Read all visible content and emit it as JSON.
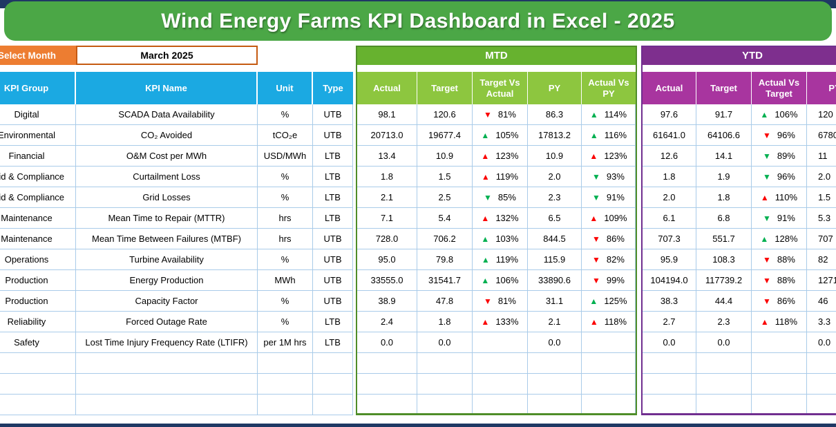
{
  "title": "Wind Energy Farms KPI Dashboard in Excel - 2025",
  "controls": {
    "select_month_label": "Select Month",
    "selected_month": "March 2025"
  },
  "sections": {
    "mtd_label": "MTD",
    "ytd_label": "YTD"
  },
  "headers": {
    "kpi_group": "KPI Group",
    "kpi_name": "KPI Name",
    "unit": "Unit",
    "type": "Type",
    "actual": "Actual",
    "target": "Target",
    "target_vs_actual": "Target Vs Actual",
    "py": "PY",
    "actual_vs_py": "Actual Vs PY",
    "actual_vs_target": "Actual Vs Target"
  },
  "colors": {
    "navy_accent": "#1F3864",
    "banner_green": "#4BA746",
    "mtd_band_green": "#67B22F",
    "mtd_header_green": "#8DC63F",
    "ytd_band_purple": "#7E2F8E",
    "ytd_header_purple": "#A8359F",
    "table_header_cyan": "#1BA9E2",
    "select_month_orange": "#ED7D31",
    "grid_line_blue": "#A9CBE9",
    "trend_up_good_green": "#00B050",
    "trend_bad_red": "#FB0000"
  },
  "icons": {
    "trend_up": "▲",
    "trend_down": "▼"
  },
  "empty_row_count": 3,
  "rows": [
    {
      "group": "Digital",
      "name": "SCADA Data Availability",
      "unit": "%",
      "type": "UTB",
      "mtd": {
        "actual": "98.1",
        "target": "120.6",
        "target_vs_actual": {
          "trend": "down",
          "color": "red",
          "value": "81%"
        },
        "py": "86.3",
        "actual_vs_py": {
          "trend": "up",
          "color": "green",
          "value": "114%"
        }
      },
      "ytd": {
        "actual": "97.6",
        "target": "91.7",
        "actual_vs_target": {
          "trend": "up",
          "color": "green",
          "value": "106%"
        },
        "py": "120"
      }
    },
    {
      "group": "Environmental",
      "name": "CO₂ Avoided",
      "unit": "tCO₂e",
      "type": "UTB",
      "mtd": {
        "actual": "20713.0",
        "target": "19677.4",
        "target_vs_actual": {
          "trend": "up",
          "color": "green",
          "value": "105%"
        },
        "py": "17813.2",
        "actual_vs_py": {
          "trend": "up",
          "color": "green",
          "value": "116%"
        }
      },
      "ytd": {
        "actual": "61641.0",
        "target": "64106.6",
        "actual_vs_target": {
          "trend": "down",
          "color": "red",
          "value": "96%"
        },
        "py": "6780"
      }
    },
    {
      "group": "Financial",
      "name": "O&M Cost per MWh",
      "unit": "USD/MWh",
      "type": "LTB",
      "mtd": {
        "actual": "13.4",
        "target": "10.9",
        "target_vs_actual": {
          "trend": "up",
          "color": "red",
          "value": "123%"
        },
        "py": "10.9",
        "actual_vs_py": {
          "trend": "up",
          "color": "red",
          "value": "123%"
        }
      },
      "ytd": {
        "actual": "12.6",
        "target": "14.1",
        "actual_vs_target": {
          "trend": "down",
          "color": "green",
          "value": "89%"
        },
        "py": "11"
      }
    },
    {
      "group": "Grid & Compliance",
      "name": "Curtailment Loss",
      "unit": "%",
      "type": "LTB",
      "mtd": {
        "actual": "1.8",
        "target": "1.5",
        "target_vs_actual": {
          "trend": "up",
          "color": "red",
          "value": "119%"
        },
        "py": "2.0",
        "actual_vs_py": {
          "trend": "down",
          "color": "green",
          "value": "93%"
        }
      },
      "ytd": {
        "actual": "1.8",
        "target": "1.9",
        "actual_vs_target": {
          "trend": "down",
          "color": "green",
          "value": "96%"
        },
        "py": "2.0"
      }
    },
    {
      "group": "Grid & Compliance",
      "name": "Grid Losses",
      "unit": "%",
      "type": "LTB",
      "mtd": {
        "actual": "2.1",
        "target": "2.5",
        "target_vs_actual": {
          "trend": "down",
          "color": "green",
          "value": "85%"
        },
        "py": "2.3",
        "actual_vs_py": {
          "trend": "down",
          "color": "green",
          "value": "91%"
        }
      },
      "ytd": {
        "actual": "2.0",
        "target": "1.8",
        "actual_vs_target": {
          "trend": "up",
          "color": "red",
          "value": "110%"
        },
        "py": "1.5"
      }
    },
    {
      "group": "Maintenance",
      "name": "Mean Time to Repair (MTTR)",
      "unit": "hrs",
      "type": "LTB",
      "mtd": {
        "actual": "7.1",
        "target": "5.4",
        "target_vs_actual": {
          "trend": "up",
          "color": "red",
          "value": "132%"
        },
        "py": "6.5",
        "actual_vs_py": {
          "trend": "up",
          "color": "red",
          "value": "109%"
        }
      },
      "ytd": {
        "actual": "6.1",
        "target": "6.8",
        "actual_vs_target": {
          "trend": "down",
          "color": "green",
          "value": "91%"
        },
        "py": "5.3"
      }
    },
    {
      "group": "Maintenance",
      "name": "Mean Time Between Failures (MTBF)",
      "unit": "hrs",
      "type": "UTB",
      "mtd": {
        "actual": "728.0",
        "target": "706.2",
        "target_vs_actual": {
          "trend": "up",
          "color": "green",
          "value": "103%"
        },
        "py": "844.5",
        "actual_vs_py": {
          "trend": "down",
          "color": "red",
          "value": "86%"
        }
      },
      "ytd": {
        "actual": "707.3",
        "target": "551.7",
        "actual_vs_target": {
          "trend": "up",
          "color": "green",
          "value": "128%"
        },
        "py": "707"
      }
    },
    {
      "group": "Operations",
      "name": "Turbine Availability",
      "unit": "%",
      "type": "UTB",
      "mtd": {
        "actual": "95.0",
        "target": "79.8",
        "target_vs_actual": {
          "trend": "up",
          "color": "green",
          "value": "119%"
        },
        "py": "115.9",
        "actual_vs_py": {
          "trend": "down",
          "color": "red",
          "value": "82%"
        }
      },
      "ytd": {
        "actual": "95.9",
        "target": "108.3",
        "actual_vs_target": {
          "trend": "down",
          "color": "red",
          "value": "88%"
        },
        "py": "82"
      }
    },
    {
      "group": "Production",
      "name": "Energy Production",
      "unit": "MWh",
      "type": "UTB",
      "mtd": {
        "actual": "33555.0",
        "target": "31541.7",
        "target_vs_actual": {
          "trend": "up",
          "color": "green",
          "value": "106%"
        },
        "py": "33890.6",
        "actual_vs_py": {
          "trend": "down",
          "color": "red",
          "value": "99%"
        }
      },
      "ytd": {
        "actual": "104194.0",
        "target": "117739.2",
        "actual_vs_target": {
          "trend": "down",
          "color": "red",
          "value": "88%"
        },
        "py": "1271"
      }
    },
    {
      "group": "Production",
      "name": "Capacity Factor",
      "unit": "%",
      "type": "UTB",
      "mtd": {
        "actual": "38.9",
        "target": "47.8",
        "target_vs_actual": {
          "trend": "down",
          "color": "red",
          "value": "81%"
        },
        "py": "31.1",
        "actual_vs_py": {
          "trend": "up",
          "color": "green",
          "value": "125%"
        }
      },
      "ytd": {
        "actual": "38.3",
        "target": "44.4",
        "actual_vs_target": {
          "trend": "down",
          "color": "red",
          "value": "86%"
        },
        "py": "46"
      }
    },
    {
      "group": "Reliability",
      "name": "Forced Outage Rate",
      "unit": "%",
      "type": "LTB",
      "mtd": {
        "actual": "2.4",
        "target": "1.8",
        "target_vs_actual": {
          "trend": "up",
          "color": "red",
          "value": "133%"
        },
        "py": "2.1",
        "actual_vs_py": {
          "trend": "up",
          "color": "red",
          "value": "118%"
        }
      },
      "ytd": {
        "actual": "2.7",
        "target": "2.3",
        "actual_vs_target": {
          "trend": "up",
          "color": "red",
          "value": "118%"
        },
        "py": "3.3"
      }
    },
    {
      "group": "Safety",
      "name": "Lost Time Injury Frequency Rate (LTIFR)",
      "unit": "per 1M hrs",
      "type": "LTB",
      "mtd": {
        "actual": "0.0",
        "target": "0.0",
        "target_vs_actual": null,
        "py": "0.0",
        "actual_vs_py": null
      },
      "ytd": {
        "actual": "0.0",
        "target": "0.0",
        "actual_vs_target": null,
        "py": "0.0"
      }
    }
  ]
}
